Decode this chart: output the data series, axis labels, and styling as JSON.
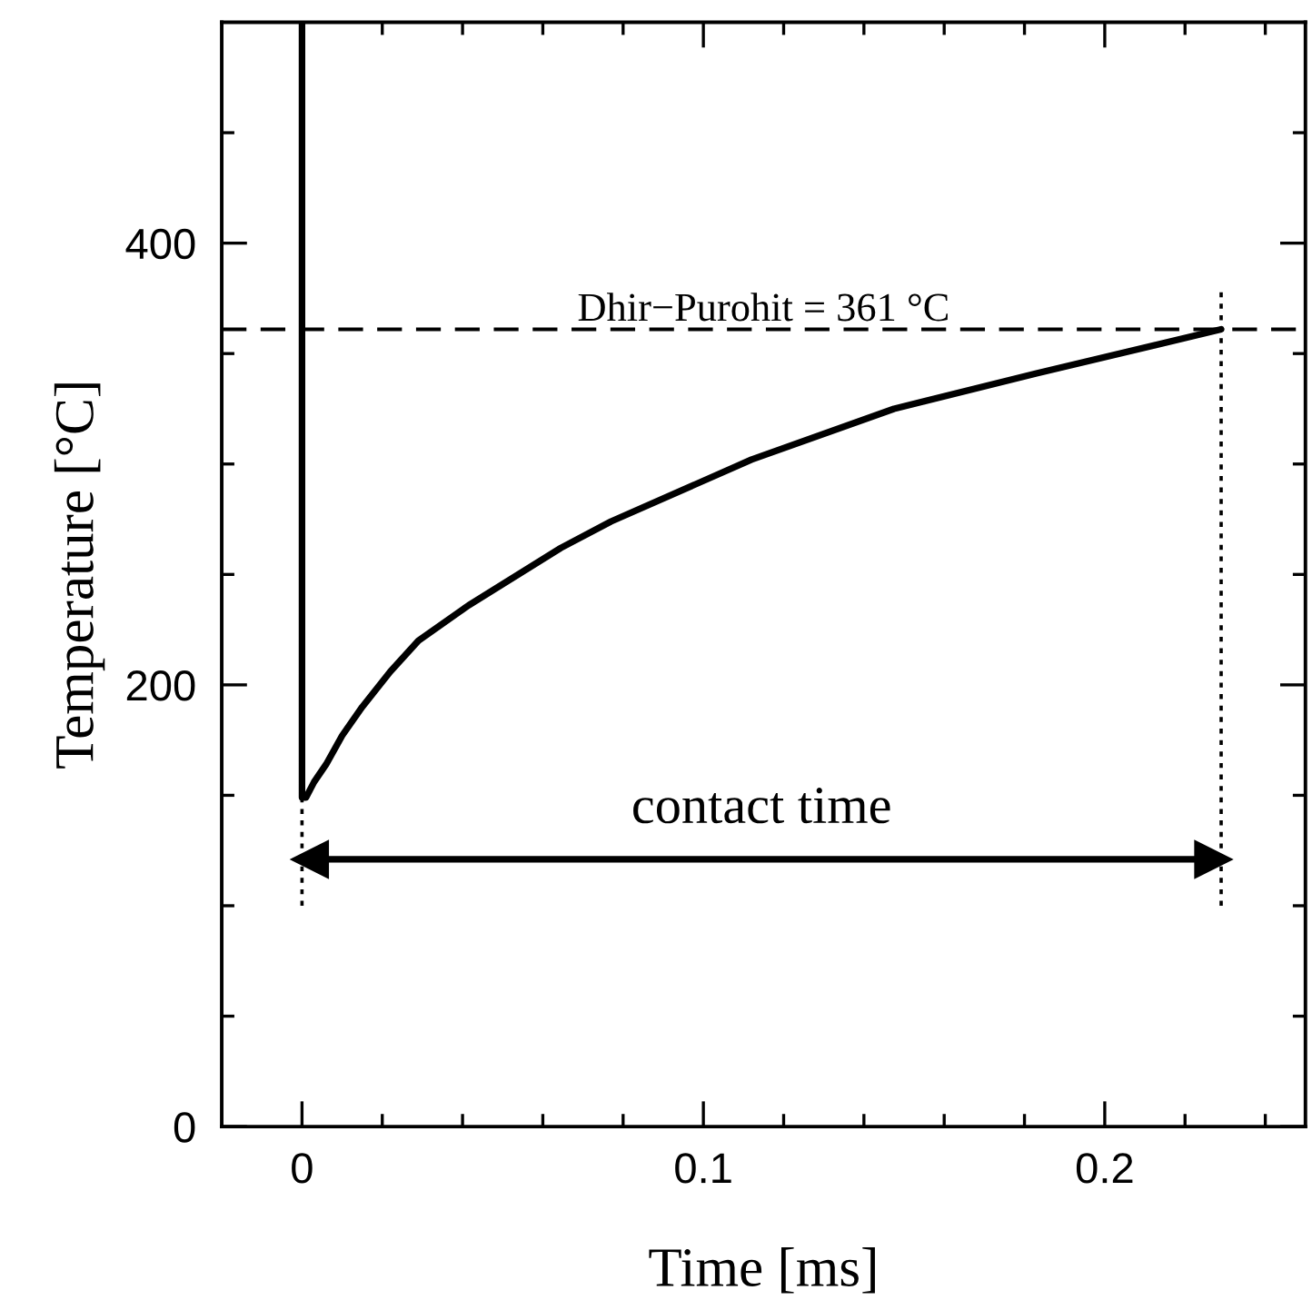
{
  "chart_data": {
    "type": "line",
    "xlabel": "Time [ms]",
    "ylabel": "Temperature [°C]",
    "series": [
      {
        "color": "#000000",
        "line_style": "solid",
        "x": [
          0,
          0,
          0.001,
          0.003,
          0.006,
          0.01,
          0.015,
          0.022,
          0.029,
          0.0415,
          0.0645,
          0.077,
          0.112,
          0.1475,
          0.183,
          0.229
        ],
        "values": [
          500,
          149,
          149,
          156,
          164,
          177,
          190,
          206,
          220,
          236,
          262,
          274,
          302,
          325,
          341,
          361
        ]
      },
      {
        "color": "#000000",
        "line_style": "dotted",
        "x": [
          0,
          0
        ],
        "values": [
          100,
          149
        ]
      },
      {
        "color": "#000000",
        "line_style": "dotted",
        "x": [
          0.229,
          0.229
        ],
        "values": [
          100,
          378
        ]
      },
      {
        "color": "#000000",
        "line_style": "solid",
        "marker": "triangle",
        "x": [
          0.002,
          0.227
        ],
        "values": [
          121,
          121
        ]
      }
    ],
    "ref_lines": [
      {
        "axis": "y",
        "value": 361,
        "label": "Dhir−Purohit = 361 °C",
        "color": "#000000",
        "line_style": "dashed"
      }
    ],
    "annotations": [
      {
        "text": "contact time",
        "x": 0.1145,
        "y": 121
      }
    ],
    "xlim": [
      -0.02,
      0.25
    ],
    "xticks": [
      0,
      {
        "value": 0.02,
        "label": null
      },
      {
        "value": 0.04,
        "label": null
      },
      {
        "value": 0.06,
        "label": null
      },
      {
        "value": 0.08,
        "label": null
      },
      0.1,
      {
        "value": 0.12,
        "label": null
      },
      {
        "value": 0.14,
        "label": null
      },
      {
        "value": 0.16,
        "label": null
      },
      {
        "value": 0.18,
        "label": null
      },
      0.2,
      {
        "value": 0.22,
        "label": null
      },
      {
        "value": 0.24,
        "label": null
      }
    ],
    "ylim": [
      0,
      500
    ],
    "yticks": [
      0,
      {
        "value": 50,
        "label": null
      },
      {
        "value": 100,
        "label": null
      },
      {
        "value": 150,
        "label": null
      },
      200,
      {
        "value": 250,
        "label": null
      },
      {
        "value": 300,
        "label": null
      },
      {
        "value": 350,
        "label": null
      },
      400,
      {
        "value": 450,
        "label": null
      }
    ],
    "grid": false,
    "legend": false,
    "marker": "none"
  }
}
